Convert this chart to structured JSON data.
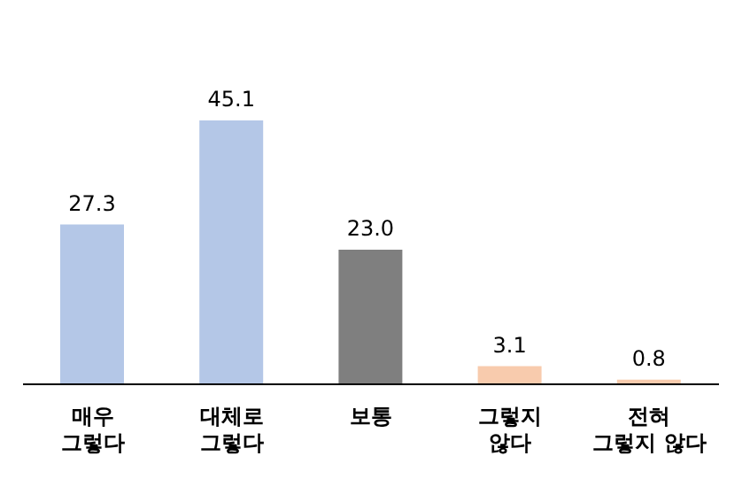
{
  "chart_data": {
    "type": "bar",
    "categories": [
      "매우\n그렇다",
      "대체로\n그렇다",
      "보통",
      "그렇지\n않다",
      "전혀\n그렇지 않다"
    ],
    "values": [
      27.3,
      45.1,
      23.0,
      3.1,
      0.8
    ],
    "colors": [
      "#b4c7e7",
      "#b4c7e7",
      "#7f7f7f",
      "#f8cbad",
      "#f8cbad"
    ],
    "value_labels": [
      "27.3",
      "45.1",
      "23.0",
      "3.1",
      "0.8"
    ],
    "grid": false,
    "legend": false
  }
}
